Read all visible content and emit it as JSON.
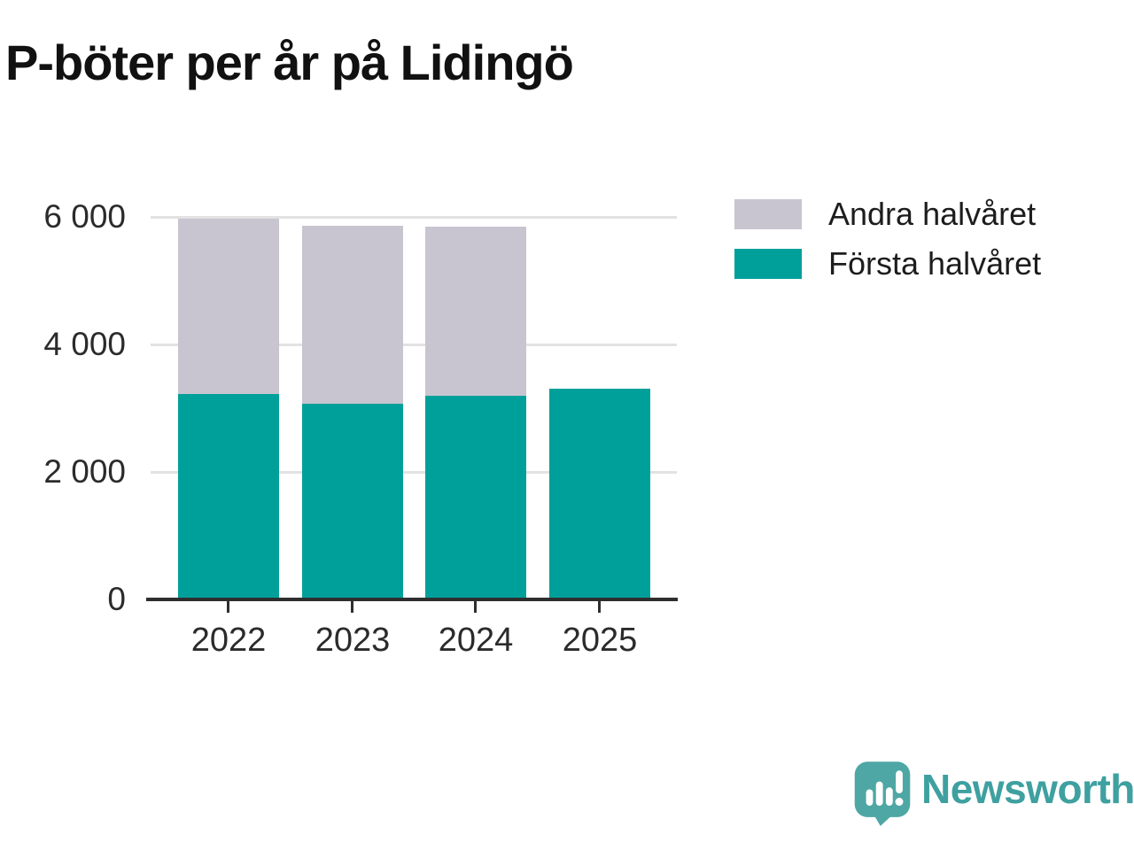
{
  "title": "P-böter per år på Lidingö",
  "legend": {
    "items": [
      {
        "label": "Andra halvåret",
        "color": "#c8c5d0"
      },
      {
        "label": "Första halvåret",
        "color": "#00a09a"
      }
    ]
  },
  "chart_data": {
    "type": "bar",
    "stacked": true,
    "title": "P-böter per år på Lidingö",
    "categories": [
      "2022",
      "2023",
      "2024",
      "2025"
    ],
    "series": [
      {
        "name": "Första halvåret",
        "color": "#00a09a",
        "values": [
          3210,
          3060,
          3180,
          3300
        ]
      },
      {
        "name": "Andra halvåret",
        "color": "#c8c5d0",
        "values": [
          2760,
          2790,
          2650,
          0
        ]
      }
    ],
    "totals": [
      5970,
      5850,
      5830,
      3300
    ],
    "xlabel": "",
    "ylabel": "",
    "ylim": [
      0,
      6000
    ],
    "yticks": [
      0,
      2000,
      4000,
      6000
    ],
    "ytick_labels": [
      "0",
      "2 000",
      "4 000",
      "6 000"
    ],
    "grid": "horizontal",
    "legend_position": "right",
    "colors": {
      "gridline": "#e2e2e2",
      "axis": "#2e2e2e",
      "text": "#2b2b2b"
    }
  },
  "branding": {
    "name": "Newsworthy",
    "logo_color": "#4ea7a4",
    "text_color": "#3fa0a0"
  }
}
